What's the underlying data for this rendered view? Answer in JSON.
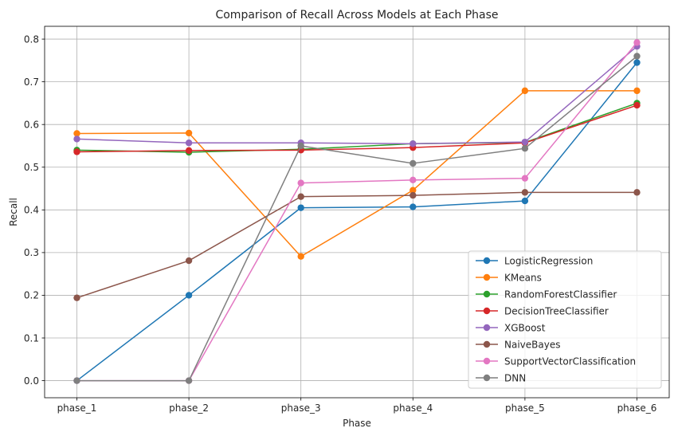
{
  "chart_data": {
    "type": "line",
    "title": "Comparison of Recall Across Models at Each Phase",
    "xlabel": "Phase",
    "ylabel": "Recall",
    "categories": [
      "phase_1",
      "phase_2",
      "phase_3",
      "phase_4",
      "phase_5",
      "phase_6"
    ],
    "ylim": [
      -0.04,
      0.83
    ],
    "yticks": [
      "0.0",
      "0.1",
      "0.2",
      "0.3",
      "0.4",
      "0.5",
      "0.6",
      "0.7",
      "0.8"
    ],
    "ytick_values": [
      0.0,
      0.1,
      0.2,
      0.3,
      0.4,
      0.5,
      0.6,
      0.7,
      0.8
    ],
    "grid": true,
    "legend_position": "lower-right",
    "series": [
      {
        "name": "LogisticRegression",
        "color": "#1f77b4",
        "values": [
          0.0,
          0.2,
          0.405,
          0.407,
          0.421,
          0.745
        ]
      },
      {
        "name": "KMeans",
        "color": "#ff7f0e",
        "values": [
          0.579,
          0.58,
          0.291,
          0.446,
          0.679,
          0.679
        ]
      },
      {
        "name": "RandomForestClassifier",
        "color": "#2ca02c",
        "values": [
          0.54,
          0.535,
          0.542,
          0.555,
          0.558,
          0.65
        ]
      },
      {
        "name": "DecisionTreeClassifier",
        "color": "#d62728",
        "values": [
          0.536,
          0.539,
          0.54,
          0.546,
          0.557,
          0.645
        ]
      },
      {
        "name": "XGBoost",
        "color": "#9467bd",
        "values": [
          0.566,
          0.557,
          0.557,
          0.555,
          0.559,
          0.783
        ]
      },
      {
        "name": "NaiveBayes",
        "color": "#8c564b",
        "values": [
          0.194,
          0.281,
          0.431,
          0.434,
          0.441,
          0.441
        ]
      },
      {
        "name": "SupportVectorClassification",
        "color": "#e377c2",
        "values": [
          0.0,
          0.0,
          0.463,
          0.47,
          0.474,
          0.792
        ]
      },
      {
        "name": "DNN",
        "color": "#7f7f7f",
        "values": [
          0.0,
          0.0,
          0.55,
          0.509,
          0.544,
          0.76
        ]
      }
    ]
  }
}
